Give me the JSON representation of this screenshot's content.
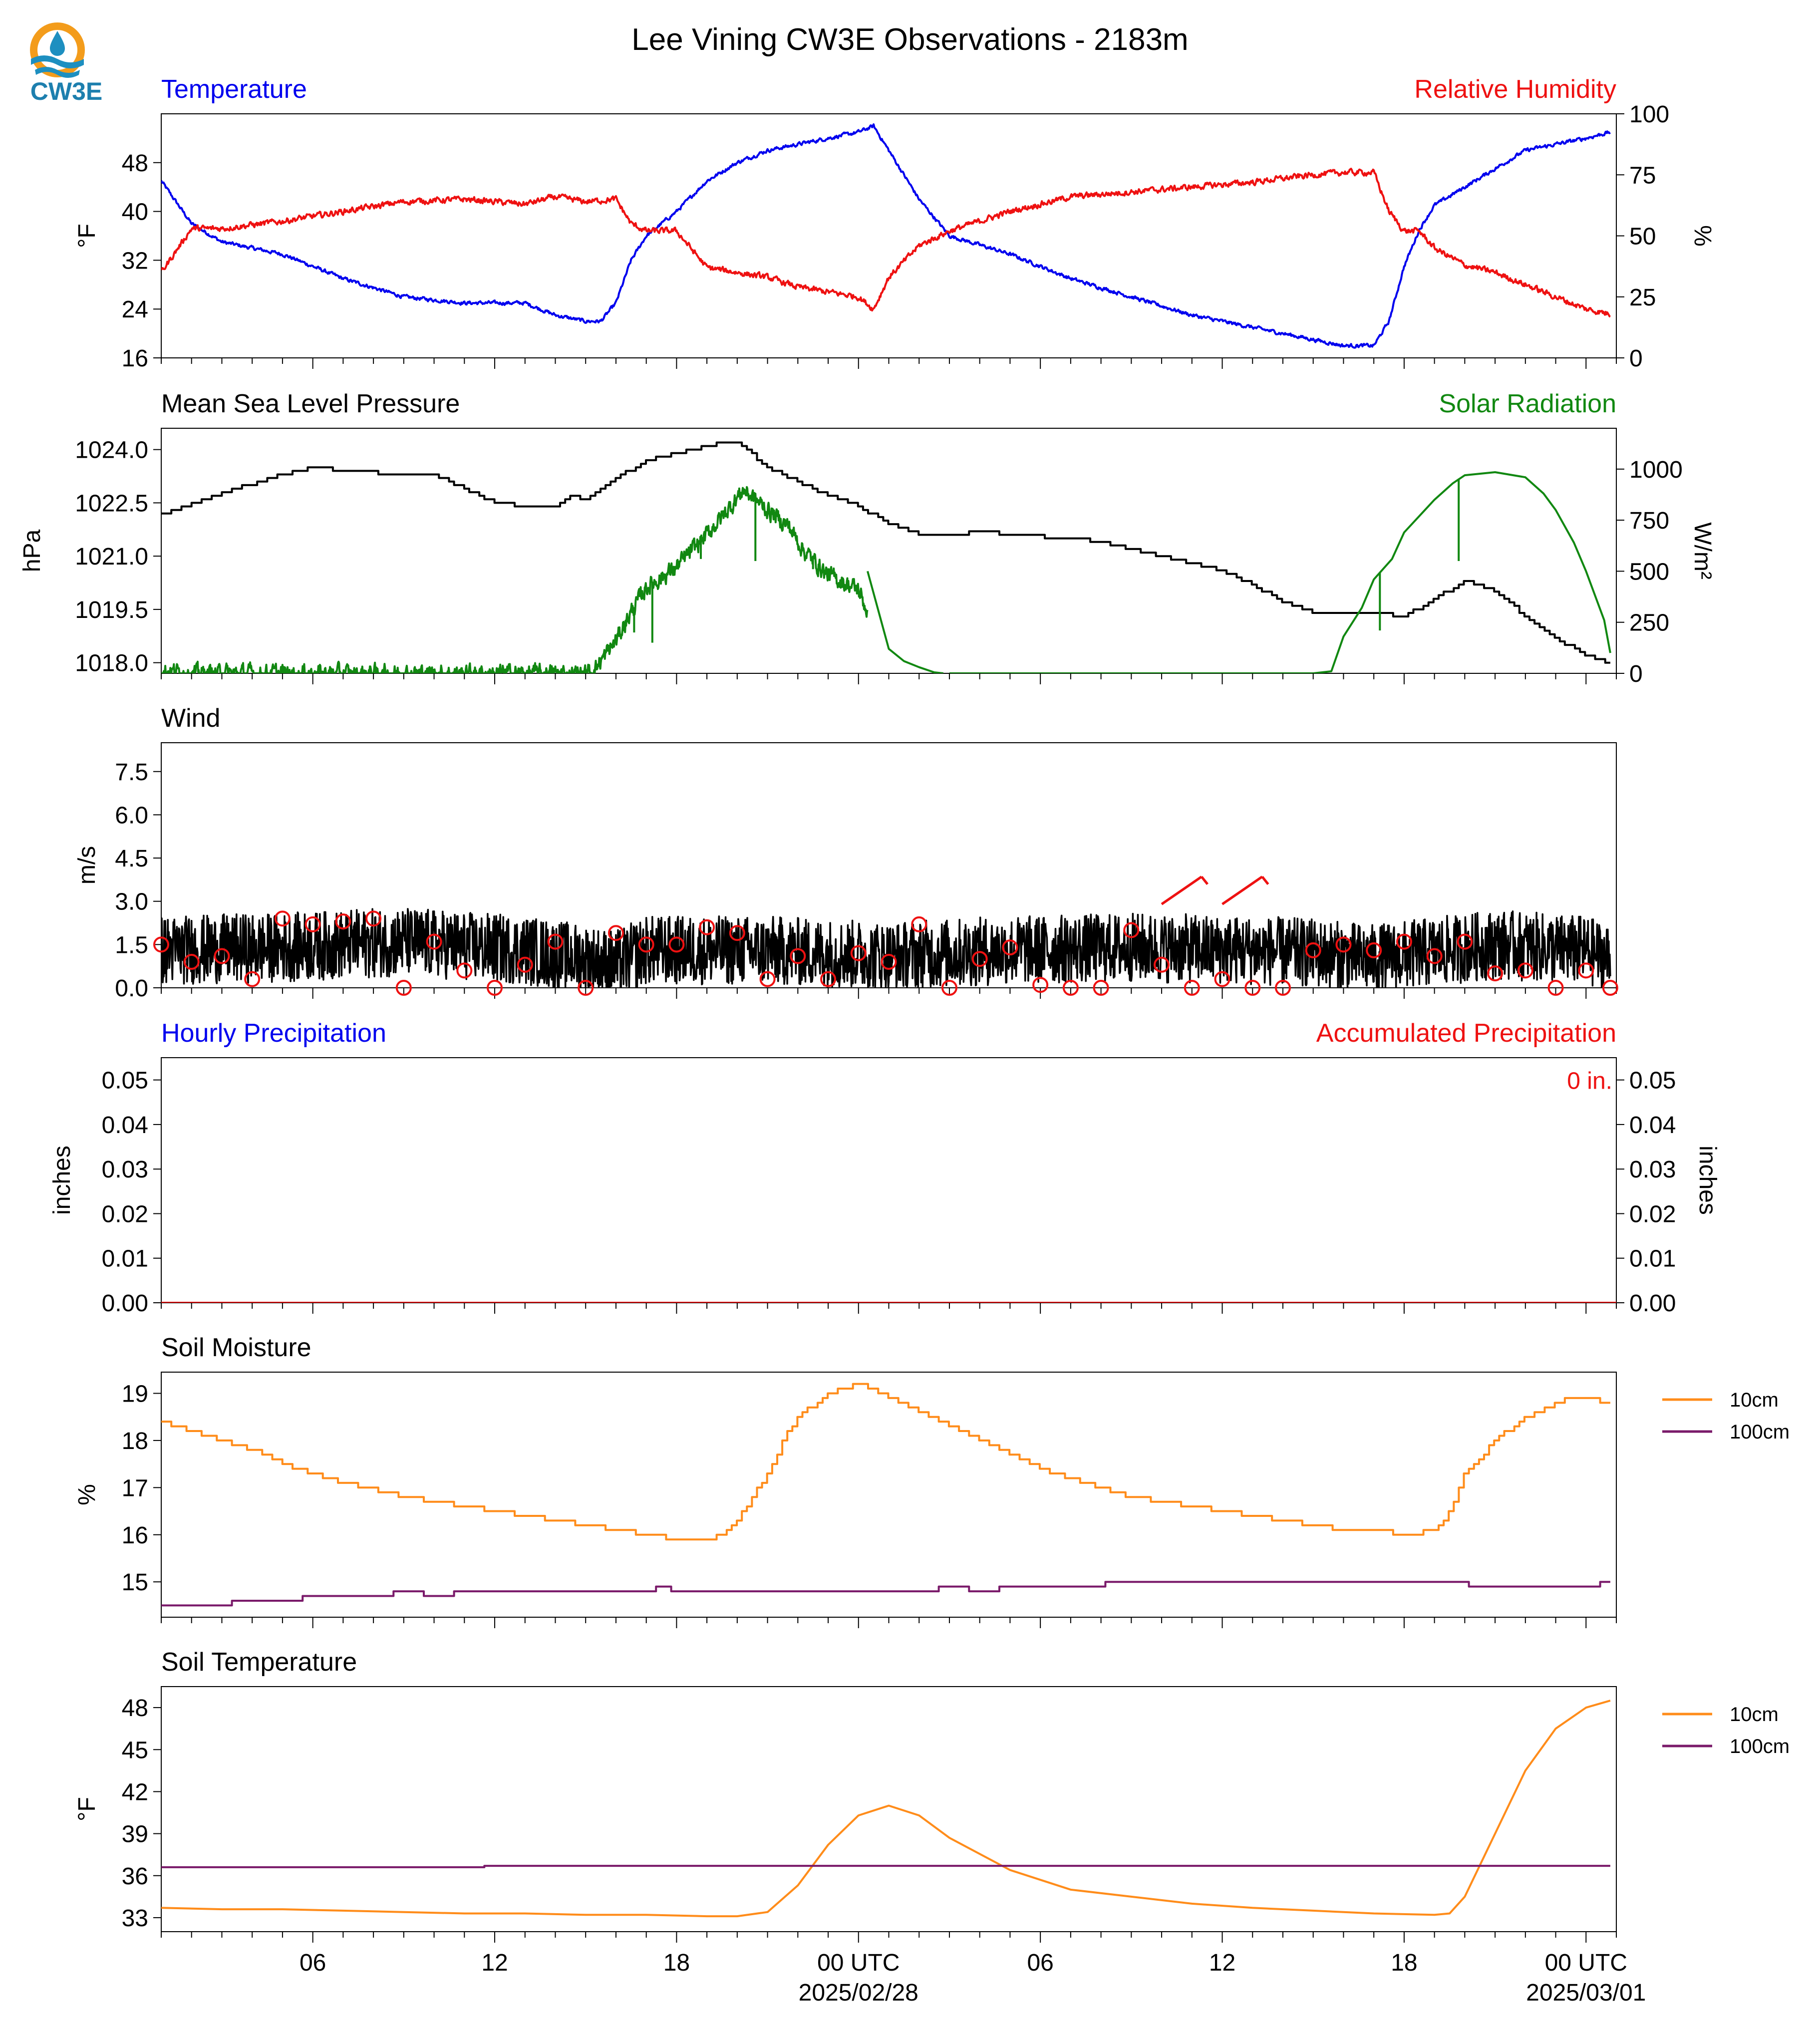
{
  "title": "Lee Vining CW3E Observations - 2183m",
  "logo": {
    "text": "CW3E",
    "colors": {
      "ring": "#f39c1b",
      "wave": "#1d8fc0",
      "text": "#1d7fae"
    }
  },
  "colors": {
    "blue": "#0000ee",
    "red": "#ee1111",
    "green": "#118811",
    "black": "#000000",
    "orange": "#ff8c1a",
    "purple": "#7a1a6a"
  },
  "x_axis": {
    "range_hours": [
      0,
      48
    ],
    "tick_hours": [
      5,
      11,
      17,
      23,
      29,
      35,
      41,
      47
    ],
    "tick_labels": [
      "06",
      "12",
      "18",
      "00 UTC",
      "06",
      "12",
      "18",
      "00 UTC"
    ],
    "date_labels": [
      {
        "hour": 23,
        "text": "2025/02/28"
      },
      {
        "hour": 47,
        "text": "2025/03/01"
      }
    ]
  },
  "chart_data": [
    {
      "id": "temp_rh",
      "type": "line",
      "title_left": "Temperature",
      "title_right": "Relative Humidity",
      "ylabel_left": "°F",
      "ylabel_right": "%",
      "ylim_left": [
        16,
        56
      ],
      "yticks_left": [
        16,
        24,
        32,
        40,
        48
      ],
      "ylim_right": [
        0,
        100
      ],
      "yticks_right": [
        0,
        25,
        50,
        75,
        100
      ],
      "series": [
        {
          "axis": "left",
          "color": "#0000ee",
          "noise": 0.5,
          "x": [
            0,
            1,
            2,
            4,
            6,
            8,
            10,
            12,
            13,
            14,
            14.5,
            15,
            15.5,
            16,
            17,
            18,
            19,
            20,
            21,
            22,
            23,
            23.5,
            24,
            25,
            26,
            28,
            30,
            32,
            34,
            36,
            38,
            39,
            40,
            40.5,
            41,
            41.5,
            42,
            43,
            44,
            45,
            46,
            47,
            47.8
          ],
          "y": [
            45,
            38,
            35,
            33,
            29,
            26,
            25,
            25,
            23,
            22,
            22,
            25,
            32,
            36,
            40,
            45,
            48,
            50,
            51,
            52,
            53,
            54,
            50,
            42,
            36,
            33,
            29,
            26,
            23,
            21,
            19,
            18,
            18,
            22,
            31,
            37,
            41,
            44,
            47,
            50,
            51,
            52,
            53
          ]
        },
        {
          "axis": "right",
          "color": "#ee1111",
          "noise": 2,
          "x": [
            0,
            1,
            2,
            4,
            6,
            8,
            10,
            12,
            13,
            14,
            15,
            15.5,
            16,
            17,
            18,
            19,
            20,
            21,
            22,
            23,
            23.5,
            24,
            25,
            26,
            28,
            30,
            32,
            34,
            36,
            38,
            39,
            40,
            40.5,
            41,
            41.5,
            42,
            43,
            44,
            45,
            46,
            47,
            47.8
          ],
          "y": [
            35,
            53,
            53,
            56,
            60,
            64,
            65,
            63,
            66,
            64,
            65,
            55,
            52,
            52,
            37,
            35,
            33,
            29,
            27,
            25,
            20,
            33,
            46,
            52,
            60,
            66,
            68,
            70,
            72,
            75,
            76,
            76,
            60,
            52,
            52,
            45,
            38,
            35,
            30,
            25,
            20,
            18
          ]
        }
      ]
    },
    {
      "id": "pres_solar",
      "type": "line",
      "title_left": "Mean Sea Level Pressure",
      "title_right": "Solar Radiation",
      "ylabel_left": "hPa",
      "ylabel_right": "W/m²",
      "ylim_left": [
        1017.7,
        1024.6
      ],
      "yticks_left": [
        1018.0,
        1019.5,
        1021.0,
        1022.5,
        1024.0
      ],
      "ytick_labels_left": [
        "1018.0",
        "1019.5",
        "1021.0",
        "1022.5",
        "1024.0"
      ],
      "ylim_right": [
        0,
        1200
      ],
      "yticks_right": [
        0,
        250,
        500,
        750,
        1000
      ],
      "series": [
        {
          "axis": "left",
          "color": "#000000",
          "step": true,
          "x": [
            0,
            2,
            4,
            5,
            6,
            8,
            9,
            10,
            11,
            12,
            13,
            13.5,
            14,
            15,
            16,
            17,
            18,
            18.5,
            19,
            20,
            21,
            22,
            23,
            24,
            25,
            26,
            27,
            28,
            30,
            31,
            32,
            33,
            34,
            35,
            36,
            37,
            38,
            39,
            40,
            41,
            42,
            43,
            44,
            45,
            46,
            47,
            47.8
          ],
          "y": [
            1022.2,
            1022.8,
            1023.3,
            1023.5,
            1023.4,
            1023.3,
            1023.3,
            1022.9,
            1022.5,
            1022.4,
            1022.4,
            1022.7,
            1022.6,
            1023.2,
            1023.7,
            1023.9,
            1024.1,
            1024.2,
            1024.2,
            1023.5,
            1023.1,
            1022.7,
            1022.4,
            1021.9,
            1021.6,
            1021.6,
            1021.7,
            1021.6,
            1021.5,
            1021.4,
            1021.2,
            1021.0,
            1020.8,
            1020.6,
            1020.2,
            1019.7,
            1019.4,
            1019.4,
            1019.4,
            1019.3,
            1019.8,
            1020.3,
            1020.0,
            1019.3,
            1018.7,
            1018.2,
            1018.0
          ]
        },
        {
          "axis": "right",
          "color": "#118811",
          "segments": [
            {
              "x": [
                0,
                1,
                14,
                14.3,
                15,
                15.5,
                16,
                17,
                18,
                18.8,
                19.2,
                20,
                20.7,
                21.2,
                22,
                23,
                23.3
              ],
              "y": [
                15,
                0,
                0,
                20,
                160,
                300,
                420,
                520,
                680,
                820,
                900,
                800,
                720,
                600,
                480,
                410,
                300
              ],
              "noise": 70
            },
            {
              "x": [
                23.3,
                24,
                24.5,
                25,
                25.5,
                25.8
              ],
              "y": [
                500,
                120,
                60,
                30,
                5,
                0
              ],
              "noise": 0
            },
            {
              "x": [
                26,
                38
              ],
              "y": [
                0,
                0
              ],
              "noise": 0
            },
            {
              "x": [
                38,
                38.6,
                39,
                39.6,
                40,
                40.6,
                41,
                42,
                42.6,
                43,
                44,
                45,
                45.6,
                46,
                46.6,
                47,
                47.6,
                47.8
              ],
              "y": [
                0,
                10,
                180,
                320,
                460,
                560,
                690,
                850,
                930,
                970,
                985,
                960,
                880,
                800,
                640,
                500,
                260,
                100
              ],
              "noise": 0
            }
          ],
          "spikes": [
            {
              "x": 15.6,
              "y": 200
            },
            {
              "x": 16.2,
              "y": 150
            },
            {
              "x": 17.8,
              "y": 560
            },
            {
              "x": 19.6,
              "y": 550
            },
            {
              "x": 21.5,
              "y": 510
            },
            {
              "x": 40.2,
              "y": 210
            },
            {
              "x": 42.8,
              "y": 550
            }
          ]
        }
      ]
    },
    {
      "id": "wind",
      "type": "line",
      "title_left": "Wind",
      "ylabel_left": "m/s",
      "ylim_left": [
        0,
        8.5
      ],
      "yticks_left": [
        0,
        1.5,
        3.0,
        4.5,
        6.0,
        7.5
      ],
      "ytick_labels_left": [
        "0.0",
        "1.5",
        "3.0",
        "4.5",
        "6.0",
        "7.5"
      ],
      "series": [
        {
          "axis": "left",
          "color": "#000000",
          "noise": 1.2,
          "x": [
            0,
            4,
            8,
            12,
            14,
            15,
            16,
            20,
            24,
            28,
            32,
            36,
            38,
            40,
            44,
            47,
            47.8
          ],
          "y": [
            1.3,
            1.4,
            1.6,
            1.3,
            1.0,
            0.8,
            1.3,
            1.3,
            1.1,
            1.3,
            1.4,
            1.3,
            1.2,
            1.0,
            1.5,
            1.3,
            1.0
          ]
        }
      ],
      "gust_markers": {
        "color": "#ee1111",
        "x": [
          0,
          1,
          2,
          3,
          4,
          5,
          6,
          7,
          8,
          9,
          10,
          11,
          12,
          13,
          14,
          15,
          16,
          17,
          18,
          19,
          20,
          21,
          22,
          23,
          24,
          25,
          26,
          27,
          28,
          29,
          30,
          31,
          32,
          33,
          34,
          35,
          36,
          37,
          38,
          39,
          40,
          41,
          42,
          43,
          44,
          45,
          46,
          47,
          47.8
        ],
        "y": [
          1.5,
          0.9,
          1.1,
          0.3,
          2.4,
          2.2,
          2.3,
          2.4,
          0.0,
          1.6,
          0.6,
          0.0,
          0.8,
          1.6,
          0.0,
          1.9,
          1.5,
          1.5,
          2.1,
          1.9,
          0.3,
          1.1,
          0.3,
          1.2,
          0.9,
          2.2,
          0.0,
          1.0,
          1.4,
          0.1,
          0.0,
          0.0,
          2.0,
          0.8,
          0.0,
          0.3,
          0.0,
          0.0,
          1.3,
          1.5,
          1.3,
          1.6,
          1.1,
          1.6,
          0.5,
          0.6,
          0.0,
          0.6,
          0.0
        ]
      },
      "barbs": {
        "color": "#ee1111",
        "x": [
          33,
          35
        ],
        "from_deg": [
          225,
          225
        ]
      }
    },
    {
      "id": "precip",
      "type": "line",
      "title_left": "Hourly Precipitation",
      "title_right": "Accumulated Precipitation",
      "ylabel_left": "inches",
      "ylabel_right": "inches",
      "ylim_left": [
        0,
        0.055
      ],
      "yticks_left": [
        0,
        0.01,
        0.02,
        0.03,
        0.04,
        0.05
      ],
      "ytick_labels_left": [
        "0.00",
        "0.01",
        "0.02",
        "0.03",
        "0.04",
        "0.05"
      ],
      "ylim_right": [
        0,
        0.055
      ],
      "yticks_right": [
        0,
        0.01,
        0.02,
        0.03,
        0.04,
        0.05
      ],
      "ytick_labels_right": [
        "0.00",
        "0.01",
        "0.02",
        "0.03",
        "0.04",
        "0.05"
      ],
      "annotation": "0 in.",
      "series": [
        {
          "axis": "left",
          "color": "#ee1111",
          "x": [
            0,
            48
          ],
          "y": [
            0,
            0
          ]
        }
      ]
    },
    {
      "id": "soil_moist",
      "type": "line",
      "title_left": "Soil Moisture",
      "ylabel_left": "%",
      "ylim_left": [
        14.25,
        19.45
      ],
      "yticks_left": [
        15,
        16,
        17,
        18,
        19
      ],
      "legend": [
        "10cm",
        "100cm"
      ],
      "series": [
        {
          "axis": "left",
          "name": "10cm",
          "color": "#ff8c1a",
          "step": true,
          "x": [
            0,
            1,
            2,
            3,
            4,
            5,
            6,
            8,
            10,
            11,
            12,
            13,
            14,
            15,
            16,
            17,
            18,
            18.5,
            19,
            20,
            20.5,
            21,
            22,
            23,
            23.5,
            24,
            25,
            26,
            27,
            28,
            29,
            30,
            31,
            32,
            33,
            34,
            35,
            36,
            37,
            38,
            39,
            40,
            41,
            42,
            42.5,
            43,
            44,
            45,
            46,
            46.5,
            47,
            47.8
          ],
          "y": [
            18.4,
            18.2,
            18.0,
            17.8,
            17.5,
            17.3,
            17.1,
            16.8,
            16.6,
            16.5,
            16.4,
            16.3,
            16.2,
            16.1,
            16.0,
            15.9,
            15.9,
            16.0,
            16.3,
            17.3,
            18.0,
            18.5,
            19.0,
            19.2,
            19.1,
            18.9,
            18.6,
            18.3,
            18.0,
            17.7,
            17.4,
            17.2,
            17.0,
            16.8,
            16.7,
            16.6,
            16.5,
            16.4,
            16.3,
            16.2,
            16.1,
            16.1,
            16.0,
            16.1,
            16.5,
            17.3,
            18.0,
            18.5,
            18.8,
            18.9,
            18.9,
            18.8
          ]
        },
        {
          "axis": "left",
          "name": "100cm",
          "color": "#7a1a6a",
          "step": true,
          "x": [
            0,
            2,
            2.5,
            3.5,
            4,
            5,
            6,
            7,
            8,
            9,
            10,
            11,
            12,
            16,
            16.5,
            17,
            20,
            25,
            26,
            27,
            28,
            30,
            32,
            34,
            36,
            38,
            40,
            41,
            42,
            44,
            46,
            47,
            47.8
          ],
          "y": [
            14.5,
            14.5,
            14.6,
            14.6,
            14.6,
            14.7,
            14.7,
            14.7,
            14.8,
            14.7,
            14.8,
            14.8,
            14.8,
            14.8,
            14.9,
            14.8,
            14.8,
            14.8,
            14.9,
            14.8,
            14.9,
            14.9,
            15.0,
            15.0,
            15.0,
            15.0,
            15.0,
            15.0,
            15.0,
            14.9,
            14.9,
            14.9,
            15.0
          ]
        }
      ]
    },
    {
      "id": "soil_temp",
      "type": "line",
      "title_left": "Soil Temperature",
      "ylabel_left": "°F",
      "ylim_left": [
        32,
        49.5
      ],
      "yticks_left": [
        33,
        36,
        39,
        42,
        45,
        48
      ],
      "legend": [
        "10cm",
        "100cm"
      ],
      "series": [
        {
          "axis": "left",
          "name": "10cm",
          "color": "#ff8c1a",
          "x": [
            0,
            2,
            4,
            6,
            8,
            10,
            12,
            14,
            16,
            18,
            19,
            20,
            21,
            22,
            23,
            24,
            25,
            26,
            28,
            30,
            32,
            34,
            36,
            38,
            40,
            42,
            42.5,
            43,
            44,
            45,
            46,
            47,
            47.8
          ],
          "y": [
            33.7,
            33.6,
            33.6,
            33.5,
            33.4,
            33.3,
            33.3,
            33.2,
            33.2,
            33.1,
            33.1,
            33.4,
            35.3,
            38.2,
            40.3,
            41.0,
            40.3,
            38.7,
            36.4,
            35.0,
            34.5,
            34.0,
            33.7,
            33.5,
            33.3,
            33.2,
            33.3,
            34.5,
            39.0,
            43.5,
            46.5,
            48.0,
            48.5
          ]
        },
        {
          "axis": "left",
          "name": "100cm",
          "color": "#7a1a6a",
          "step": true,
          "x": [
            0,
            10,
            11,
            15,
            16,
            20,
            30,
            33,
            34,
            47.8
          ],
          "y": [
            36.6,
            36.6,
            36.7,
            36.7,
            36.7,
            36.7,
            36.7,
            36.7,
            36.7,
            36.7
          ]
        }
      ]
    }
  ]
}
